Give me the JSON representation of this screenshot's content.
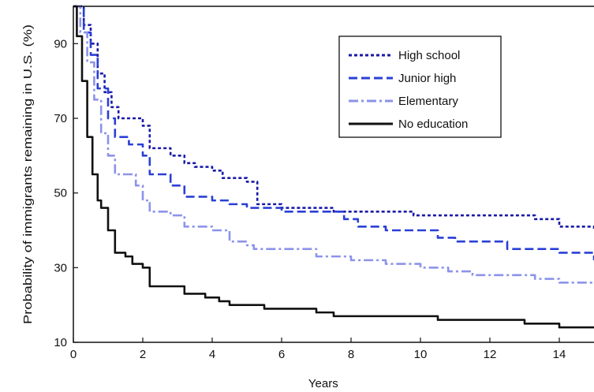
{
  "chart_data": {
    "type": "line",
    "xlabel": "Years",
    "ylabel": "Probability of immigrants remaining in U.S. (%)",
    "xlim": [
      0,
      15
    ],
    "ylim": [
      10,
      100
    ],
    "xticks": [
      0,
      2,
      4,
      6,
      8,
      10,
      12,
      14
    ],
    "yticks": [
      10,
      30,
      50,
      70,
      90
    ],
    "step": true,
    "legend_position": "top-right",
    "series": [
      {
        "name": "High school",
        "color": "#1a1aa8",
        "dash": "dotted",
        "x": [
          0,
          0.3,
          0.5,
          0.7,
          0.9,
          1.1,
          1.3,
          2.0,
          2.2,
          2.8,
          3.2,
          3.5,
          4.0,
          4.3,
          4.8,
          5.0,
          5.3,
          6.0,
          7.2,
          7.5,
          8.0,
          9.0,
          9.2,
          9.8,
          12.0,
          13.3,
          14.0,
          15.0
        ],
        "y": [
          100,
          95,
          90,
          82,
          77,
          73,
          70,
          68,
          62,
          60,
          58,
          57,
          56,
          54,
          54,
          53,
          47,
          46,
          46,
          45,
          45,
          45,
          45,
          44,
          44,
          43,
          41,
          40
        ]
      },
      {
        "name": "Junior high",
        "color": "#2a3fd6",
        "dash": "dashed",
        "x": [
          0,
          0.3,
          0.5,
          0.7,
          1.0,
          1.2,
          1.6,
          2.0,
          2.2,
          2.8,
          3.2,
          4.0,
          4.5,
          5.0,
          6.0,
          7.8,
          8.2,
          9.0,
          10.0,
          10.5,
          11.0,
          12.0,
          12.5,
          14.0,
          15.0
        ],
        "y": [
          100,
          93,
          87,
          78,
          70,
          65,
          63,
          60,
          55,
          52,
          49,
          48,
          47,
          46,
          45,
          43,
          41,
          40,
          40,
          38,
          37,
          37,
          35,
          34,
          32
        ]
      },
      {
        "name": "Elementary",
        "color": "#8c93ea",
        "dash": "dashdot",
        "x": [
          0,
          0.2,
          0.4,
          0.6,
          0.8,
          1.0,
          1.2,
          1.8,
          2.0,
          2.2,
          2.8,
          3.2,
          3.8,
          4.0,
          4.5,
          5.0,
          5.2,
          6.0,
          7.0,
          7.2,
          8.0,
          9.0,
          10.0,
          10.8,
          11.5,
          12.0,
          13.3,
          14.0,
          15.0
        ],
        "y": [
          100,
          93,
          85,
          75,
          66,
          60,
          55,
          52,
          48,
          45,
          44,
          41,
          41,
          40,
          37,
          36,
          35,
          35,
          33,
          33,
          32,
          31,
          30,
          29,
          28,
          28,
          27,
          26,
          26
        ]
      },
      {
        "name": "No education",
        "color": "#111111",
        "dash": "solid",
        "x": [
          0,
          0.1,
          0.25,
          0.4,
          0.55,
          0.7,
          0.8,
          1.0,
          1.2,
          1.5,
          1.7,
          2.0,
          2.2,
          2.8,
          3.2,
          3.8,
          4.2,
          4.5,
          5.0,
          5.5,
          6.0,
          7.0,
          7.5,
          8.0,
          9.0,
          10.0,
          10.5,
          12.0,
          13.0,
          14.0,
          14.5,
          15.0
        ],
        "y": [
          100,
          92,
          80,
          65,
          55,
          48,
          46,
          40,
          34,
          33,
          31,
          30,
          25,
          25,
          23,
          22,
          21,
          20,
          20,
          19,
          19,
          18,
          17,
          17,
          17,
          17,
          16,
          16,
          15,
          14,
          14,
          14
        ]
      }
    ]
  }
}
